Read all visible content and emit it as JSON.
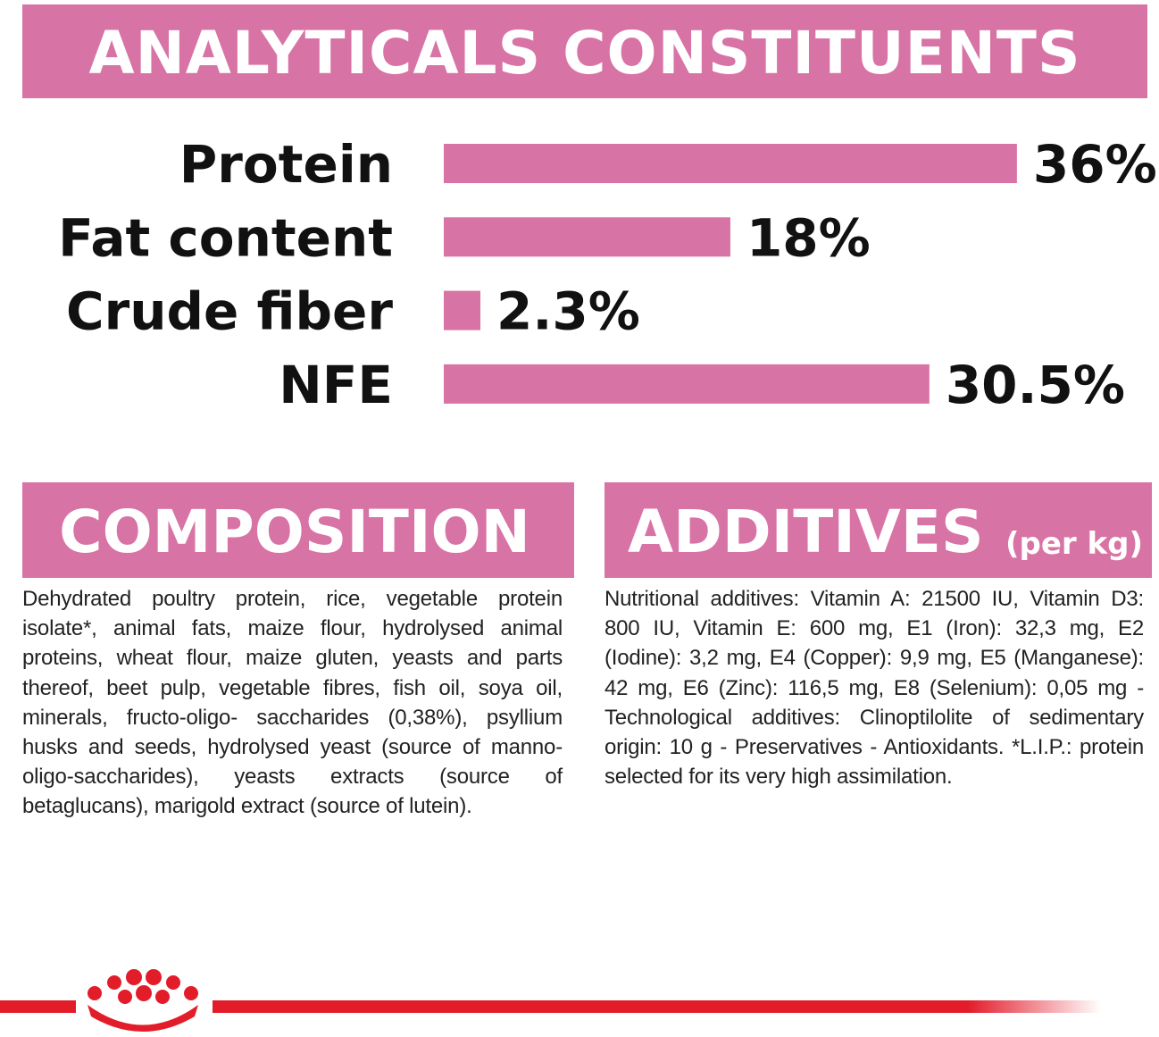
{
  "header": {
    "title": "ANALYTICALS CONSTITUENTS"
  },
  "chart_data": {
    "type": "bar",
    "orientation": "horizontal",
    "color": "#d873a5",
    "categories": [
      "Protein",
      "Fat content",
      "Crude fiber",
      "NFE"
    ],
    "values": [
      36,
      18,
      2.3,
      30.5
    ],
    "value_labels": [
      "36%",
      "18%",
      "2.3%",
      "30.5%"
    ]
  },
  "composition": {
    "title": "COMPOSITION",
    "text": "Dehydrated poultry protein, rice, vegetable protein isolate*, animal fats, maize flour, hydrolysed animal proteins, wheat flour, maize gluten, yeasts and parts thereof, beet pulp, vegetable fibres, fish oil, soya oil, minerals, fructo-oligo- saccharides (0,38%), psyllium husks and seeds, hydrolysed yeast (source of manno-oligo-saccharides), yeasts extracts (source of betaglucans), marigold extract (source of lutein)."
  },
  "additives": {
    "title": "ADDITIVES",
    "unit": "(per kg)",
    "text": "Nutritional additives: Vitamin A: 21500 IU, Vitamin D3: 800 IU, Vitamin E: 600 mg, E1 (Iron): 32,3 mg, E2 (Iodine): 3,2 mg, E4 (Copper): 9,9 mg, E5 (Manganese): 42 mg, E6 (Zinc): 116,5 mg, E8 (Selenium): 0,05 mg - Technological additives: Clinoptilolite of sedimentary origin: 10 g - Preservatives - Antioxidants. *L.I.P.: protein selected for its very high assimilation."
  }
}
